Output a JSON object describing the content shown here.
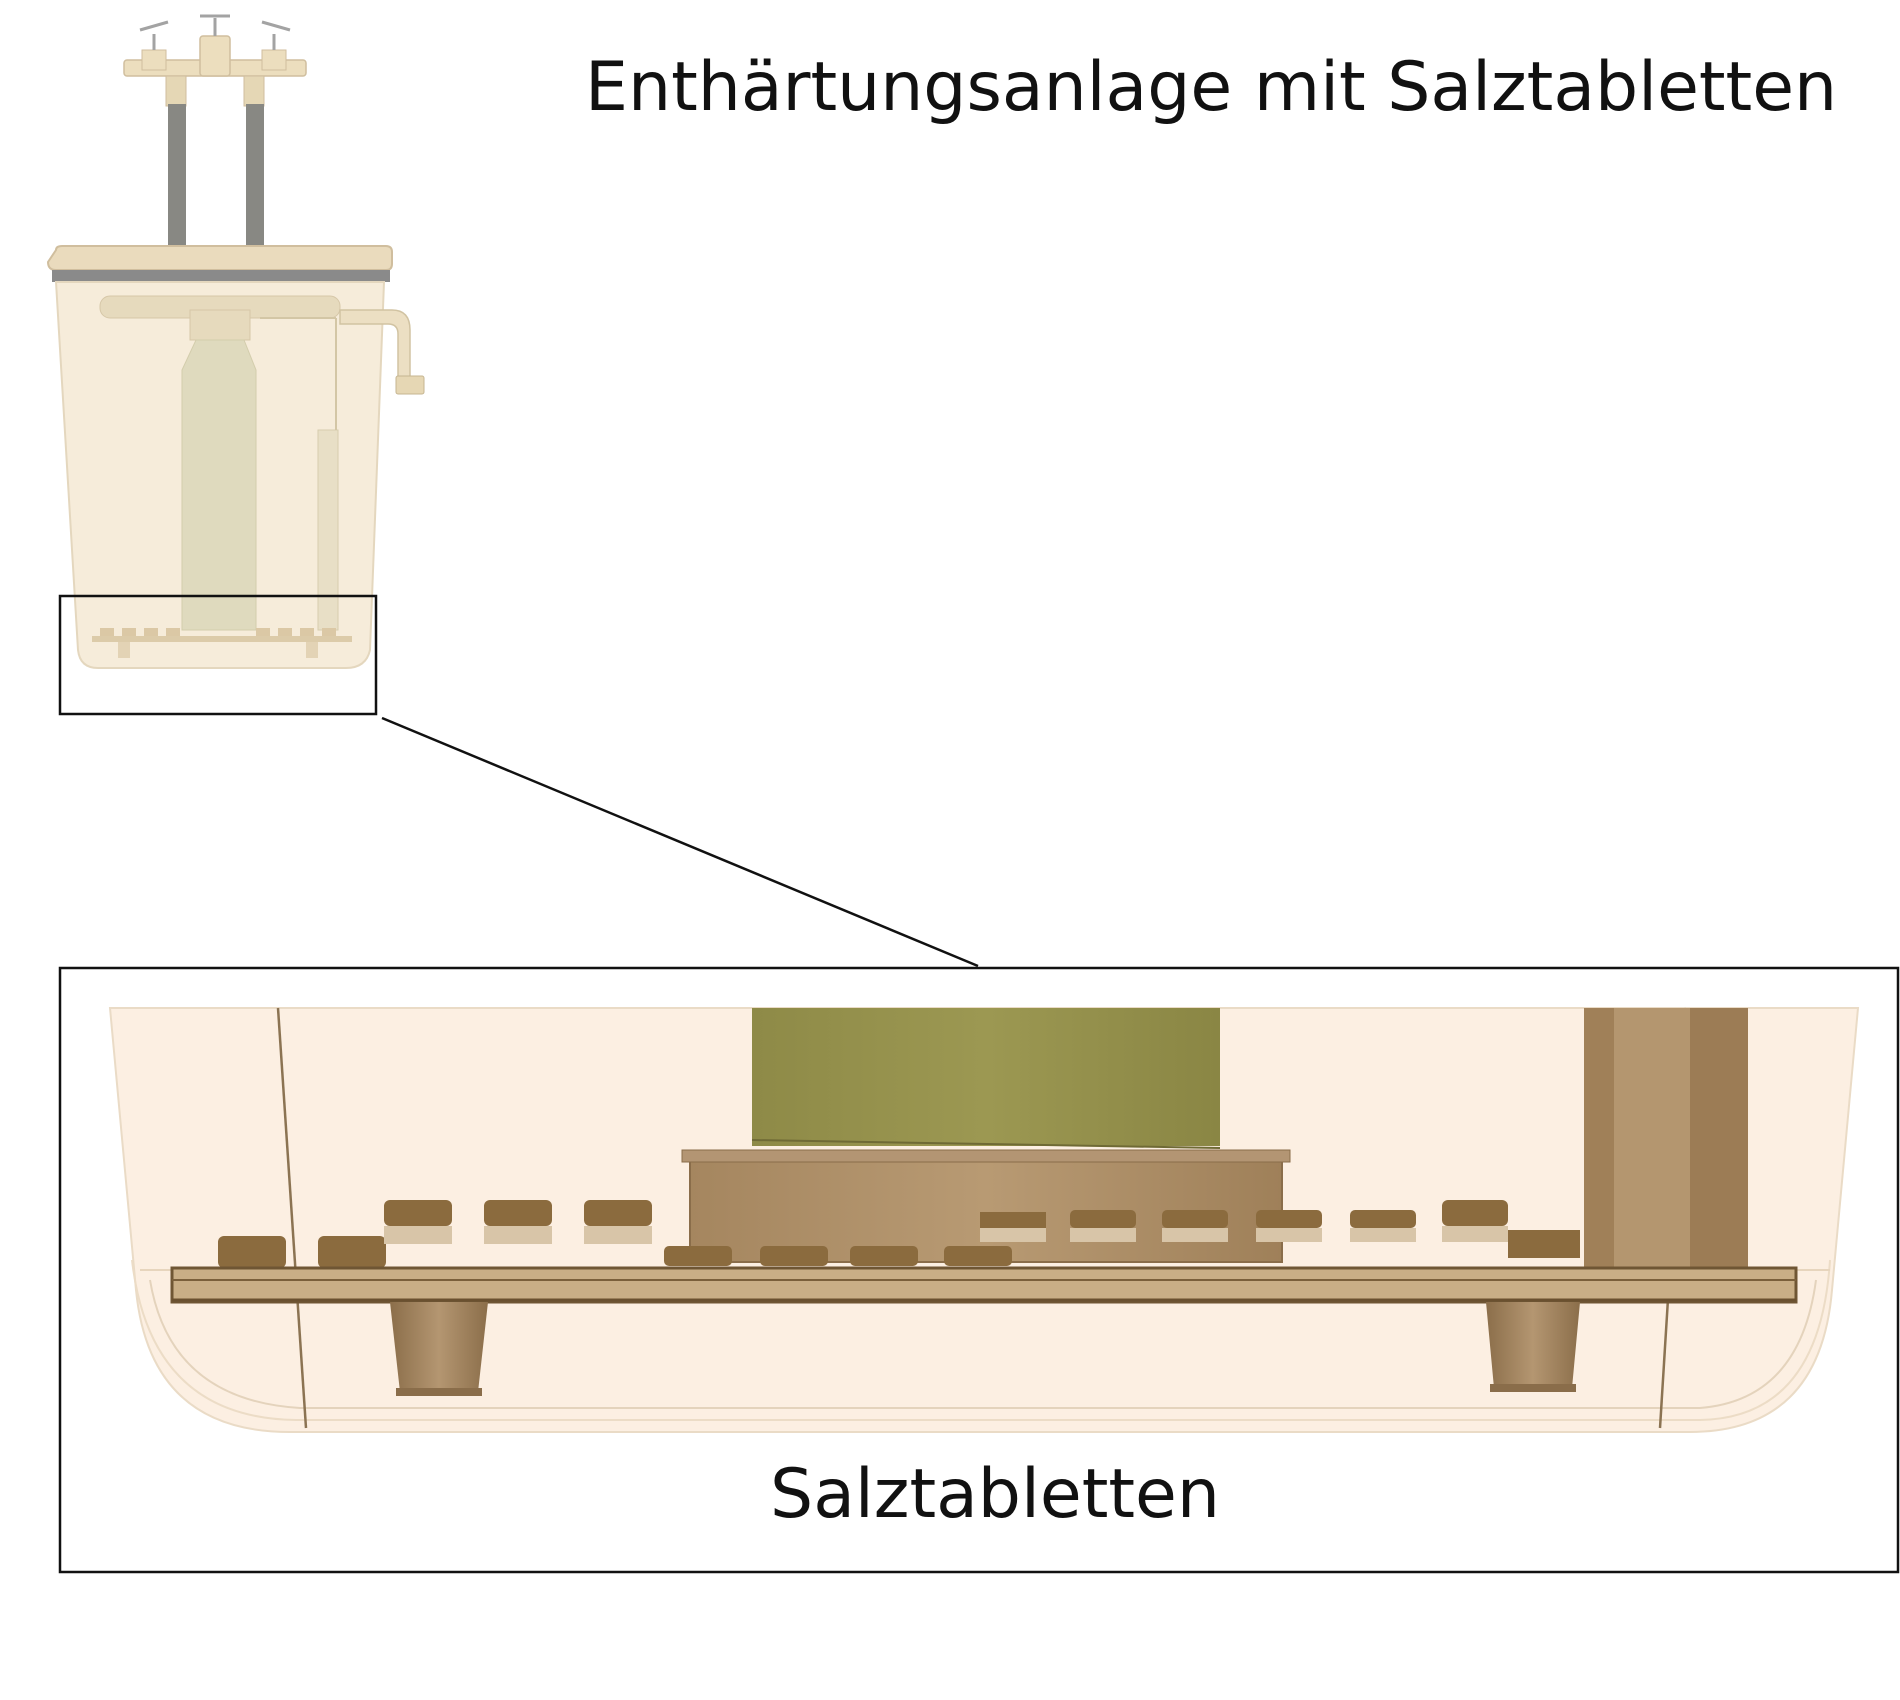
{
  "title": "Enthärtungsanlage mit Salztabletten",
  "detail_label": "Salztabletten",
  "colors": {
    "housing": "#f3e2c8",
    "housing_stroke": "#d9c7aa",
    "lid": "#e6d6b4",
    "pipe": "#7a7a72",
    "resin_tank": "#9a9650",
    "base_ring": "#a88a66",
    "tablet": "#8b6b3e",
    "tablet_light": "#d8c5a8",
    "frame": "#111111"
  }
}
